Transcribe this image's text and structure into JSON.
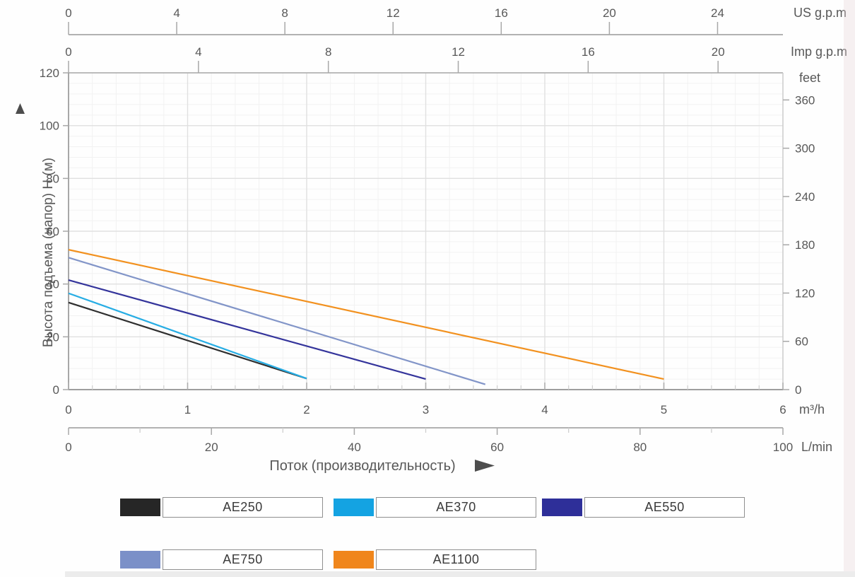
{
  "chart_data": {
    "type": "line",
    "title": "",
    "xlabel": "Поток (производительность)",
    "ylabel": "Высота подъема (напор) H (м)",
    "grid": "on",
    "x_range_m3h": [
      0,
      6
    ],
    "y_range_m": [
      0,
      120
    ],
    "minor_step_x_m3h": 0.2,
    "minor_step_y_m": 4,
    "axes": {
      "top_outer": {
        "unit": "US g.p.m",
        "ticks": [
          0,
          4,
          8,
          12,
          16,
          20,
          24
        ],
        "units_per_m3h": 4.4029
      },
      "top_inner": {
        "unit": "Imp g.p.m",
        "ticks": [
          0,
          4,
          8,
          12,
          16,
          20
        ],
        "units_per_m3h": 3.6662
      },
      "left": {
        "unit": "",
        "ticks": [
          0,
          20,
          40,
          60,
          80,
          100,
          120
        ]
      },
      "right": {
        "unit": "feet",
        "ticks": [
          0,
          60,
          120,
          180,
          240,
          300,
          360
        ],
        "units_per_m": 3.2808
      },
      "bottom_inner": {
        "unit": "m³/h",
        "ticks": [
          0,
          1,
          2,
          3,
          4,
          5,
          6
        ]
      },
      "bottom_outer": {
        "unit": "L/min",
        "ticks": [
          0,
          20,
          40,
          60,
          80,
          100
        ],
        "minor_ticks": [
          10,
          30,
          50,
          70,
          90
        ],
        "units_per_m3h": 16.6667
      }
    },
    "series": [
      {
        "name": "AE250",
        "color": "#2f2f2f",
        "points": [
          [
            0,
            33
          ],
          [
            2,
            4.2
          ]
        ]
      },
      {
        "name": "AE370",
        "color": "#27ade4",
        "points": [
          [
            0,
            36.5
          ],
          [
            2,
            4.2
          ]
        ]
      },
      {
        "name": "AE550",
        "color": "#34349b",
        "points": [
          [
            0,
            41.5
          ],
          [
            3,
            4
          ]
        ]
      },
      {
        "name": "AE750",
        "color": "#8295c8",
        "points": [
          [
            0,
            50
          ],
          [
            3.5,
            2
          ]
        ]
      },
      {
        "name": "AE1100",
        "color": "#f2911f",
        "points": [
          [
            0,
            53
          ],
          [
            5,
            4
          ]
        ]
      }
    ]
  },
  "legend": {
    "items": [
      {
        "label": "AE250",
        "color": "#262626"
      },
      {
        "label": "AE370",
        "color": "#14a3e2"
      },
      {
        "label": "AE550",
        "color": "#2e2f99"
      },
      {
        "label": "AE750",
        "color": "#7b90c8"
      },
      {
        "label": "AE1100",
        "color": "#f0861c"
      }
    ]
  },
  "colors": {
    "axis_line": "#b2b2b2",
    "frame_dark": "#9e9e9e",
    "frame_light": "#cccccc",
    "tick": "#a8a8a8",
    "grid_major": "#e0e0e0",
    "grid_minor": "#f2f2f2",
    "text": "#585858",
    "marker": "#4d4d4d"
  }
}
